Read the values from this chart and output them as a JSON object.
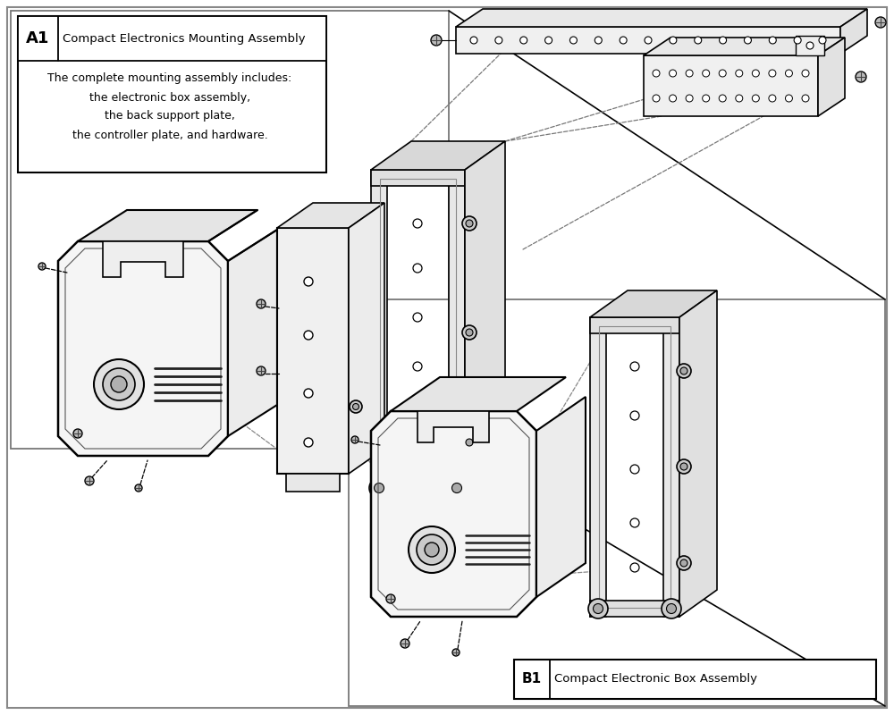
{
  "bg": "#ffffff",
  "lc": "#000000",
  "fc_light": "#f5f5f5",
  "fc_top": "#e5e5e5",
  "fc_side": "#ececec",
  "fc_mid": "#d8d8d8",
  "a1_label": "A1",
  "a1_title": "Compact Electronics Mounting Assembly",
  "a1_desc_line1": "The complete mounting assembly includes:",
  "a1_desc_line2": "the electronic box assembly,",
  "a1_desc_line3": "the back support plate,",
  "a1_desc_line4": "the controller plate, and hardware.",
  "b1_label": "B1",
  "b1_title": "Compact Electronic Box Assembly",
  "gray_border": "#999999"
}
